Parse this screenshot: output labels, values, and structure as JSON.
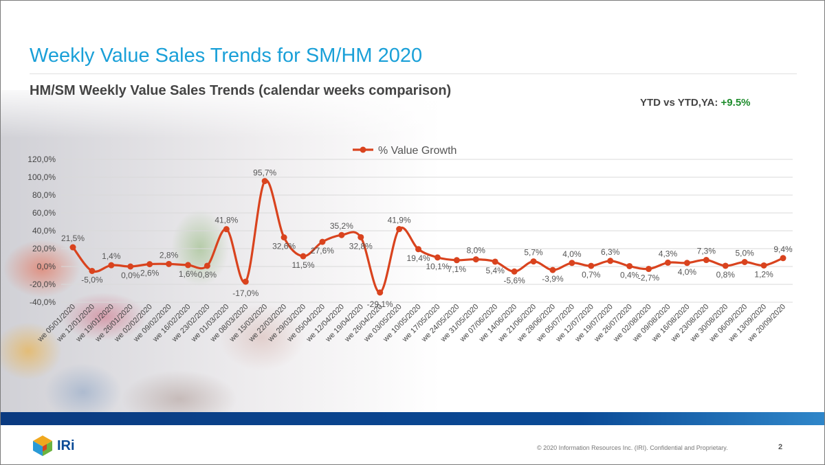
{
  "slide": {
    "title": "Weekly Value Sales Trends for SM/HM 2020",
    "subtitle": "HM/SM Weekly Value  Sales Trends (calendar weeks comparison)",
    "ytd_label": "YTD vs YTD,YA:",
    "ytd_value": "+9.5%",
    "ytd_color": "#1e8c2c",
    "footer": {
      "logo_text": "IRi",
      "copyright": "© 2020 Information Resources Inc. (IRI). Confidential and Proprietary.",
      "page_number": "2"
    }
  },
  "chart_data": {
    "type": "line",
    "legend_position": "top",
    "grid": true,
    "ylim": [
      -40,
      120
    ],
    "ytick_labels": [
      "120,0%",
      "100,0%",
      "80,0%",
      "60,0%",
      "40,0%",
      "20,0%",
      "0,0%",
      "-20,0%",
      "-40,0%"
    ],
    "series_color": "#d9431e",
    "x": [
      "we 05/01/2020",
      "we 12/01/2020",
      "we 19/01/2020",
      "we 26/01/2020",
      "we 02/02/2020",
      "we 09/02/2020",
      "we 16/02/2020",
      "we 23/02/2020",
      "we 01/03/2020",
      "we 08/03/2020",
      "we 15/03/2020",
      "we 22/03/2020",
      "we 29/03/2020",
      "we 05/04/2020",
      "we 12/04/2020",
      "we 19/04/2020",
      "we 26/04/2020",
      "we 03/05/2020",
      "we 10/05/2020",
      "we 17/05/2020",
      "we 24/05/2020",
      "we 31/05/2020",
      "we 07/06/2020",
      "we 14/06/2020",
      "we 21/06/2020",
      "we 28/06/2020",
      "we 05/07/2020",
      "we 12/07/2020",
      "we 19/07/2020",
      "we 26/07/2020",
      "we 02/08/2020",
      "we 09/08/2020",
      "we 16/08/2020",
      "we 23/08/2020",
      "we 30/08/2020",
      "we 06/09/2020",
      "we 13/09/2020",
      "we 20/09/2020"
    ],
    "series": [
      {
        "name": "% Value Growth",
        "values": [
          21.5,
          -5.0,
          1.4,
          0.0,
          2.6,
          2.8,
          1.6,
          0.8,
          41.8,
          -17.0,
          95.7,
          32.6,
          11.5,
          27.6,
          35.2,
          32.8,
          -29.1,
          41.9,
          19.4,
          10.1,
          7.1,
          8.0,
          5.4,
          -5.6,
          5.7,
          -3.9,
          4.0,
          0.7,
          6.3,
          0.4,
          -2.7,
          4.3,
          4.0,
          7.3,
          0.8,
          5.0,
          1.2,
          9.4
        ],
        "labels": [
          "21,5%",
          "-5,0%",
          "1,4%",
          "0,0%",
          "2,6%",
          "2,8%",
          "1,6%",
          "0,8%",
          "41,8%",
          "-17,0%",
          "95,7%",
          "32,6%",
          "11,5%",
          "27,6%",
          "35,2%",
          "32,8%",
          "-29,1%",
          "41,9%",
          "19,4%",
          "10,1%",
          "7,1%",
          "8,0%",
          "5,4%",
          "-5,6%",
          "5,7%",
          "-3,9%",
          "4,0%",
          "0,7%",
          "6,3%",
          "0,4%",
          "-2,7%",
          "4,3%",
          "4,0%",
          "7,3%",
          "0,8%",
          "5,0%",
          "1,2%",
          "9,4%"
        ]
      }
    ]
  }
}
